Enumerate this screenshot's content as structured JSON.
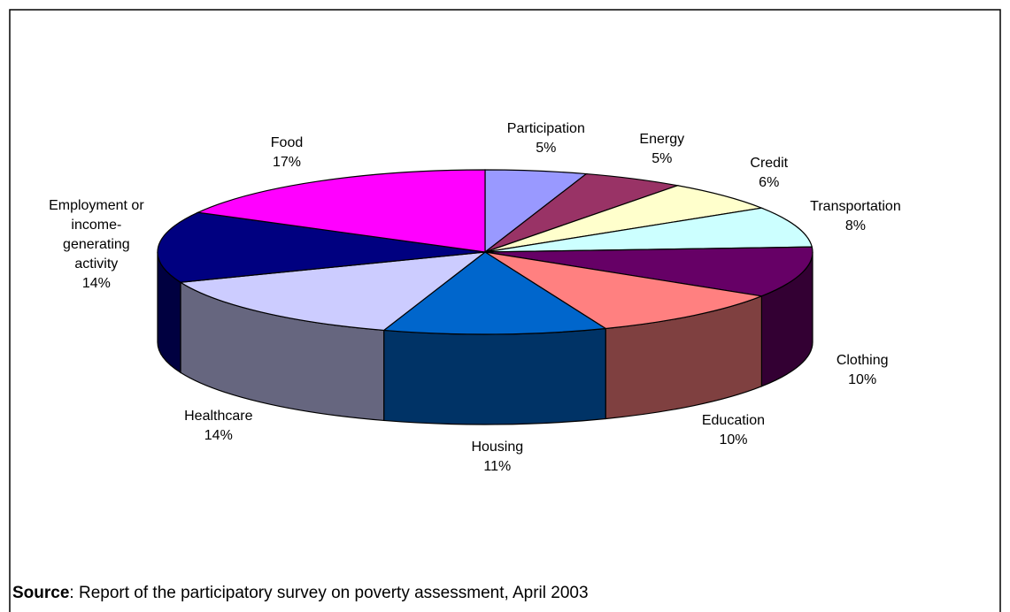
{
  "chart_data": {
    "type": "pie",
    "categories": [
      "Participation",
      "Energy",
      "Credit",
      "Transportation",
      "Clothing",
      "Education",
      "Housing",
      "Healthcare",
      "Employment or income-generating activity",
      "Food"
    ],
    "values": [
      5,
      5,
      6,
      8,
      10,
      10,
      11,
      14,
      14,
      17
    ],
    "value_labels": [
      "5%",
      "5%",
      "6%",
      "8%",
      "10%",
      "10%",
      "11%",
      "14%",
      "14%",
      "17%"
    ],
    "colors": [
      "#9999ff",
      "#993366",
      "#ffffcc",
      "#ccffff",
      "#660066",
      "#ff8080",
      "#0066cc",
      "#ccccff",
      "#000080",
      "#ff00ff"
    ],
    "three_d": true
  },
  "source": {
    "label": "Source",
    "text": ": Report of the participatory survey on poverty assessment, April 2003"
  }
}
